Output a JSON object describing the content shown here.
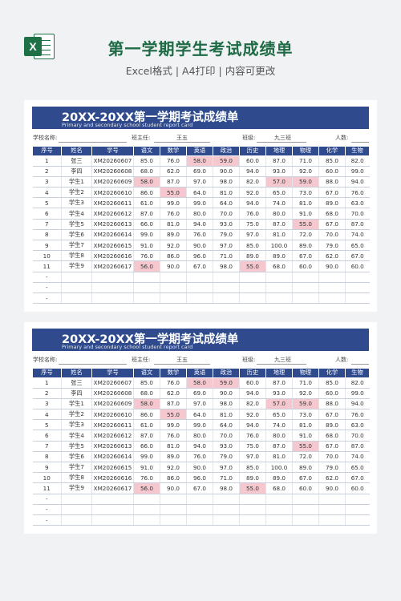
{
  "page": {
    "title": "第一学期学生考试成绩单",
    "subtitle": "Excel格式 | A4打印 | 内容可更改",
    "logo_letter": "X"
  },
  "sheet": {
    "title": "20XX-20XX第一学期考试成绩单",
    "subtitle": "Primary and secondary school student report card",
    "info": {
      "school_label": "学校名称:",
      "teacher_label": "班主任:",
      "teacher_value": "王五",
      "class_label": "班级:",
      "class_value": "九三班",
      "count_label": "人数:"
    },
    "columns": [
      "序号",
      "姓名",
      "学号",
      "语文",
      "数学",
      "英语",
      "政治",
      "历史",
      "地理",
      "物理",
      "化学",
      "生物"
    ],
    "rows": [
      [
        "1",
        "张三",
        "XM20260607",
        "85.0",
        "76.0",
        "58.0",
        "59.0",
        "60.0",
        "87.0",
        "71.0",
        "85.0",
        "82.0"
      ],
      [
        "2",
        "李四",
        "XM20260608",
        "68.0",
        "62.0",
        "69.0",
        "90.0",
        "94.0",
        "93.0",
        "92.0",
        "60.0",
        "99.0"
      ],
      [
        "3",
        "学生1",
        "XM20260609",
        "58.0",
        "87.0",
        "97.0",
        "98.0",
        "82.0",
        "57.0",
        "59.0",
        "88.0",
        "94.0"
      ],
      [
        "4",
        "学生2",
        "XM20260610",
        "86.0",
        "55.0",
        "64.0",
        "81.0",
        "92.0",
        "65.0",
        "73.0",
        "67.0",
        "76.0"
      ],
      [
        "5",
        "学生3",
        "XM20260611",
        "61.0",
        "99.0",
        "99.0",
        "64.0",
        "94.0",
        "74.0",
        "81.0",
        "89.0",
        "63.0"
      ],
      [
        "6",
        "学生4",
        "XM20260612",
        "87.0",
        "76.0",
        "80.0",
        "70.0",
        "76.0",
        "80.0",
        "91.0",
        "68.0",
        "70.0"
      ],
      [
        "7",
        "学生5",
        "XM20260613",
        "66.0",
        "81.0",
        "94.0",
        "93.0",
        "75.0",
        "87.0",
        "55.0",
        "67.0",
        "87.0"
      ],
      [
        "8",
        "学生6",
        "XM20260614",
        "99.0",
        "89.0",
        "76.0",
        "79.0",
        "97.0",
        "81.0",
        "72.0",
        "70.0",
        "74.0"
      ],
      [
        "9",
        "学生7",
        "XM20260615",
        "91.0",
        "92.0",
        "90.0",
        "97.0",
        "85.0",
        "100.0",
        "89.0",
        "79.0",
        "65.0"
      ],
      [
        "10",
        "学生8",
        "XM20260616",
        "76.0",
        "86.0",
        "96.0",
        "71.0",
        "89.0",
        "89.0",
        "67.0",
        "62.0",
        "67.0"
      ],
      [
        "11",
        "学生9",
        "XM20260617",
        "56.0",
        "90.0",
        "67.0",
        "98.0",
        "55.0",
        "68.0",
        "60.0",
        "90.0",
        "60.0"
      ],
      [
        "-",
        "",
        "",
        "",
        "",
        "",
        "",
        "",
        "",
        "",
        "",
        ""
      ],
      [
        "-",
        "",
        "",
        "",
        "",
        "",
        "",
        "",
        "",
        "",
        "",
        ""
      ],
      [
        "-",
        "",
        "",
        "",
        "",
        "",
        "",
        "",
        "",
        "",
        "",
        ""
      ]
    ],
    "highlight_color": "#f5c8cf",
    "header_color": "#2f4b8d"
  }
}
